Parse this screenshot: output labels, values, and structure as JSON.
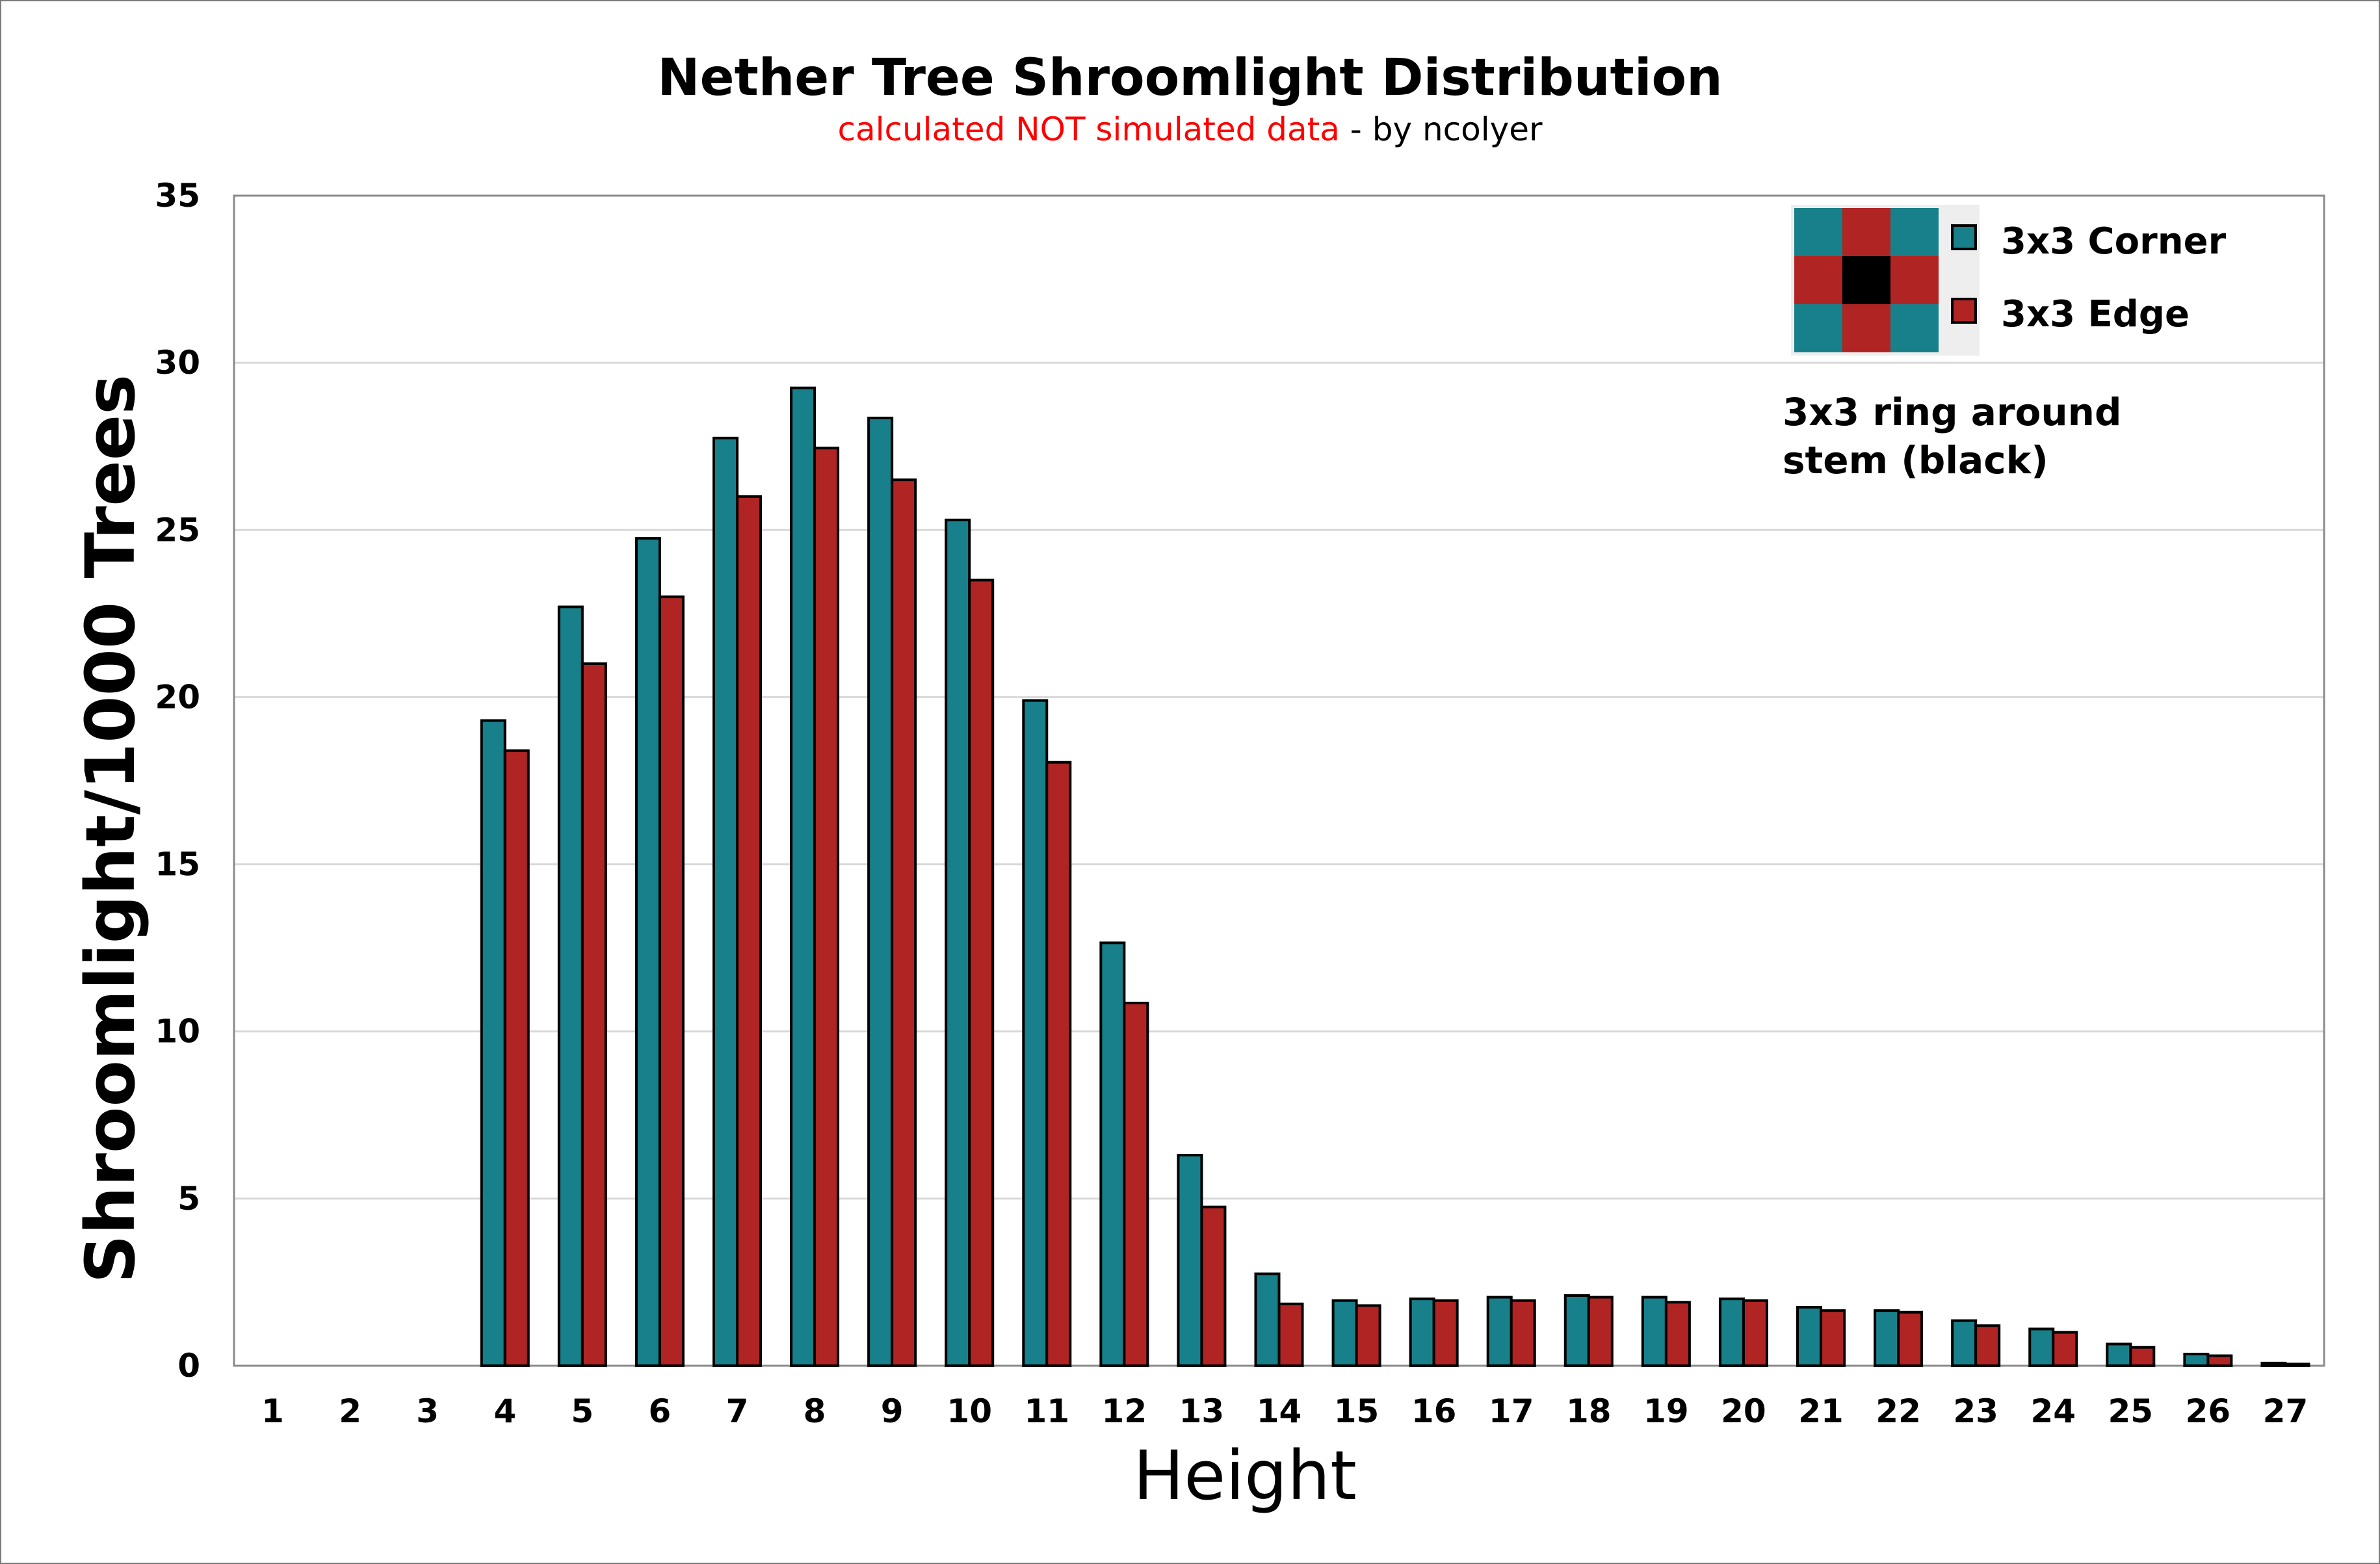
{
  "chart_data": {
    "type": "bar",
    "title": "Nether Tree Shroomlight Distribution",
    "subtitle_red": "calculated NOT simulated data",
    "subtitle_rest": " - by ncolyer",
    "xlabel": "Height",
    "ylabel": "Shroomlight/1000 Trees",
    "ylim": [
      0,
      35
    ],
    "yticks": [
      0,
      5,
      10,
      15,
      20,
      25,
      30,
      35
    ],
    "grid": true,
    "legend_position": "top-right",
    "categories": [
      "1",
      "2",
      "3",
      "4",
      "5",
      "6",
      "7",
      "8",
      "9",
      "10",
      "11",
      "12",
      "13",
      "14",
      "15",
      "16",
      "17",
      "18",
      "19",
      "20",
      "21",
      "22",
      "23",
      "24",
      "25",
      "26",
      "27"
    ],
    "series": [
      {
        "name": "3x3 Corner",
        "color": "#17808a",
        "values": [
          0,
          0,
          0,
          19.3,
          22.7,
          24.75,
          27.75,
          29.25,
          28.35,
          25.3,
          19.9,
          12.65,
          6.3,
          2.75,
          1.95,
          2.0,
          2.05,
          2.1,
          2.05,
          2.0,
          1.75,
          1.65,
          1.35,
          1.1,
          0.65,
          0.35,
          0.08
        ]
      },
      {
        "name": "3x3 Edge",
        "color": "#b02424",
        "values": [
          0,
          0,
          0,
          18.4,
          21.0,
          23.0,
          26.0,
          27.45,
          26.5,
          23.5,
          18.05,
          10.85,
          4.75,
          1.85,
          1.8,
          1.95,
          1.95,
          2.05,
          1.9,
          1.95,
          1.65,
          1.6,
          1.2,
          1.0,
          0.55,
          0.3,
          0.05
        ]
      }
    ],
    "annotation_line1": "3x3 ring around",
    "annotation_line2": "stem (black)",
    "ring_grid_colors": [
      [
        "#17808a",
        "#b02424",
        "#17808a"
      ],
      [
        "#b02424",
        "#000000",
        "#b02424"
      ],
      [
        "#17808a",
        "#b02424",
        "#17808a"
      ]
    ]
  }
}
